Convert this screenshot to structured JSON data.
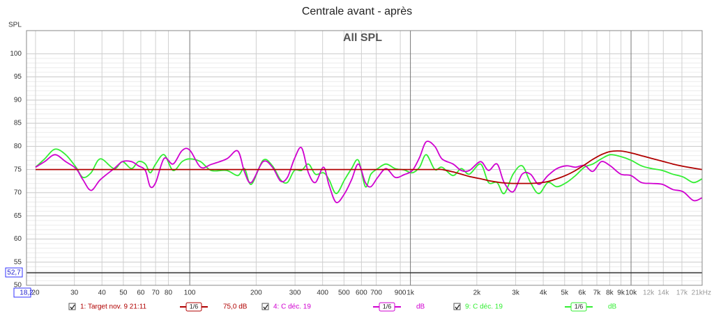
{
  "chart_data": {
    "type": "line",
    "title": "Centrale avant - après",
    "subtitle": "All SPL",
    "y_label": "SPL",
    "x_scale": "log",
    "grid": true,
    "xlim": [
      18.2,
      21000
    ],
    "ylim": [
      50,
      105
    ],
    "xticks": [
      20,
      30,
      40,
      50,
      60,
      70,
      80,
      100,
      200,
      300,
      400,
      500,
      600,
      700,
      900,
      {
        "value": 1000,
        "label": "1k"
      },
      {
        "value": 2000,
        "label": "2k"
      },
      {
        "value": 3000,
        "label": "3k"
      },
      {
        "value": 4000,
        "label": "4k"
      },
      {
        "value": 5000,
        "label": "5k"
      },
      {
        "value": 6000,
        "label": "6k"
      },
      {
        "value": 7000,
        "label": "7k"
      },
      {
        "value": 8000,
        "label": "8k"
      },
      {
        "value": 9000,
        "label": "9k"
      },
      {
        "value": 10000,
        "label": "10k"
      },
      {
        "value": 12000,
        "label": "12k"
      },
      {
        "value": 14000,
        "label": "14k"
      },
      {
        "value": 17000,
        "label": "17k"
      },
      {
        "value": 21000,
        "label": "21kHz"
      }
    ],
    "yticks": [
      50,
      55,
      60,
      65,
      70,
      75,
      80,
      85,
      90,
      95,
      100
    ],
    "cursor": {
      "x": {
        "value": 18.2,
        "label": "18,2"
      },
      "y": {
        "value": 52.7,
        "label": "52,7"
      }
    },
    "x": [
      20,
      22,
      24.5,
      27.4,
      30.5,
      32.8,
      35.7,
      39.3,
      45.4,
      49.5,
      54.4,
      58.5,
      62.9,
      66.2,
      70.1,
      76.5,
      84,
      92.3,
      100,
      112,
      125,
      147,
      165,
      177,
      190,
      215,
      237,
      258,
      277,
      298,
      321,
      345,
      371,
      404,
      428,
      461,
      503,
      541,
      581,
      625,
      662,
      711,
      776,
      853,
      937,
      1020,
      1100,
      1180,
      1290,
      1390,
      1560,
      1700,
      1850,
      2080,
      2260,
      2470,
      2660,
      2920,
      3210,
      3500,
      3820,
      4200,
      4610,
      5100,
      5600,
      6150,
      6710,
      7330,
      8050,
      8980,
      10000,
      11140,
      12420,
      13870,
      15450,
      17220,
      19190,
      21000
    ],
    "series": [
      {
        "name": "1: Target nov. 9 21:11",
        "smoothing": "1/6",
        "level": "75,0 dB",
        "color": "#b00000",
        "values": [
          75,
          75,
          75,
          75,
          75,
          75,
          75,
          75,
          75,
          75,
          75,
          75,
          75,
          75,
          75,
          75,
          75,
          75,
          75,
          75,
          75,
          75,
          75,
          75,
          75,
          75,
          75,
          75,
          75,
          75,
          75,
          75,
          75,
          75,
          75,
          75,
          75,
          75,
          75,
          75,
          75,
          75,
          75,
          75,
          75,
          75,
          75,
          75,
          75,
          75,
          74.5,
          74,
          73.5,
          73,
          72.6,
          72.3,
          72.1,
          72,
          72,
          72,
          72.1,
          72.4,
          73,
          73.8,
          74.8,
          76,
          77.2,
          78.2,
          78.9,
          79,
          78.6,
          78,
          77.4,
          76.8,
          76.2,
          75.7,
          75.3,
          75
        ]
      },
      {
        "name": "4: C déc. 19",
        "smoothing": "1/6",
        "level": "dB",
        "color": "#d000d0",
        "values": [
          75.5,
          76.7,
          78.2,
          76.7,
          75.2,
          72.8,
          70.5,
          72.8,
          75.2,
          76.7,
          76.7,
          75.8,
          74.8,
          71.3,
          72.2,
          77.4,
          76.2,
          79.1,
          79.2,
          75.5,
          76.1,
          77.3,
          79,
          74.5,
          72.2,
          76.7,
          75.5,
          72.5,
          73.3,
          77.3,
          79.7,
          74.3,
          72.2,
          75.5,
          71.6,
          67.9,
          69.8,
          72.8,
          76.2,
          72.2,
          71.3,
          73.3,
          75.2,
          73.3,
          73.9,
          74.8,
          77.6,
          81,
          80,
          77.3,
          76.2,
          74.8,
          74.8,
          76.7,
          74.8,
          76.2,
          72.2,
          70.2,
          74,
          74,
          71.8,
          73.7,
          75.2,
          75.8,
          75.5,
          75.9,
          74.6,
          76.7,
          75.8,
          74,
          73.7,
          72.2,
          72,
          71.8,
          70.7,
          70.2,
          68.3,
          68.9
        ]
      },
      {
        "name": "9: C déc. 19",
        "smoothing": "1/6",
        "level": "dB",
        "color": "#33ee33",
        "values": [
          75.5,
          77.3,
          79.4,
          78.2,
          75.5,
          73.3,
          74.3,
          77.3,
          75.2,
          76.7,
          75.2,
          76.7,
          76.2,
          74.3,
          76.2,
          78.2,
          74.8,
          76.7,
          77.3,
          76.7,
          74.8,
          74.8,
          73.7,
          75.2,
          71.8,
          77,
          75.8,
          72.8,
          72.2,
          74.8,
          74.8,
          76.2,
          74,
          74.3,
          72.8,
          69.8,
          72.8,
          75.2,
          77,
          71.3,
          74,
          75.2,
          76.2,
          75.2,
          74.9,
          74.3,
          75.5,
          78.2,
          75,
          75.5,
          73.7,
          75.2,
          74,
          76.2,
          72.2,
          72.2,
          69.8,
          74,
          75.8,
          72.2,
          69.8,
          72.2,
          71.3,
          72.2,
          73.7,
          75.5,
          76.2,
          77.3,
          78.2,
          77.8,
          77,
          75.8,
          75.2,
          74.8,
          74,
          73.4,
          72.2,
          73
        ]
      }
    ]
  }
}
